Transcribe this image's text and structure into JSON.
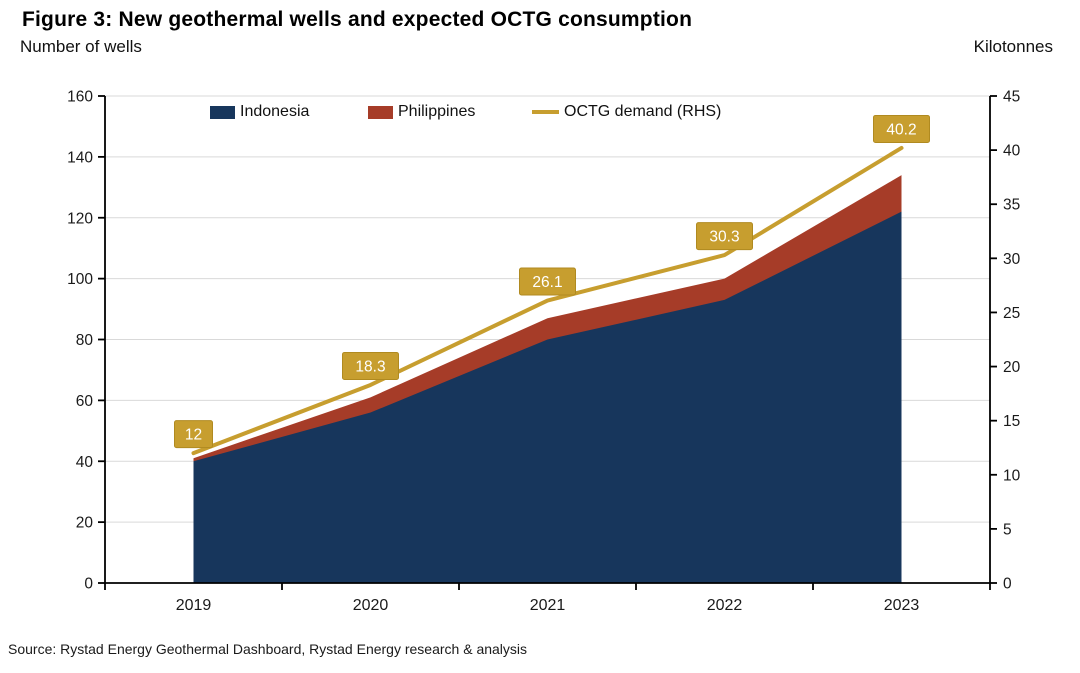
{
  "header": {
    "title": "Figure 3: New geothermal wells and expected OCTG consumption"
  },
  "chart_data": {
    "type": "area",
    "stacked": true,
    "categories": [
      "2019",
      "2020",
      "2021",
      "2022",
      "2023"
    ],
    "series": [
      {
        "name": "Indonesia",
        "type": "area",
        "axis": "left",
        "color": "#17365c",
        "values": [
          40,
          56,
          80,
          93,
          122
        ]
      },
      {
        "name": "Philippines",
        "type": "area",
        "axis": "left",
        "color": "#a63c28",
        "values": [
          1,
          5,
          7,
          7,
          12
        ]
      },
      {
        "name": "OCTG demand (RHS)",
        "type": "line",
        "axis": "right",
        "color": "#c79e2f",
        "values": [
          12,
          18.3,
          26.1,
          30.3,
          40.2
        ],
        "labels": [
          "12",
          "18.3",
          "26.1",
          "30.3",
          "40.2"
        ]
      }
    ],
    "left_axis": {
      "label": "Number of wells",
      "min": 0,
      "max": 160,
      "step": 20
    },
    "right_axis": {
      "label": "Kilotonnes",
      "min": 0,
      "max": 45,
      "step": 5
    },
    "grid": "horizontal",
    "legend_position": "top-inside",
    "colors": {
      "gridline": "#d9d9d9",
      "axis": "#000000",
      "tick_text": "#1a1a1a",
      "data_label_bg": "#c79e2f",
      "data_label_border": "#b08a20",
      "data_label_text": "#ffffff"
    }
  },
  "footer": {
    "source": "Source: Rystad Energy Geothermal Dashboard, Rystad Energy research & analysis"
  }
}
